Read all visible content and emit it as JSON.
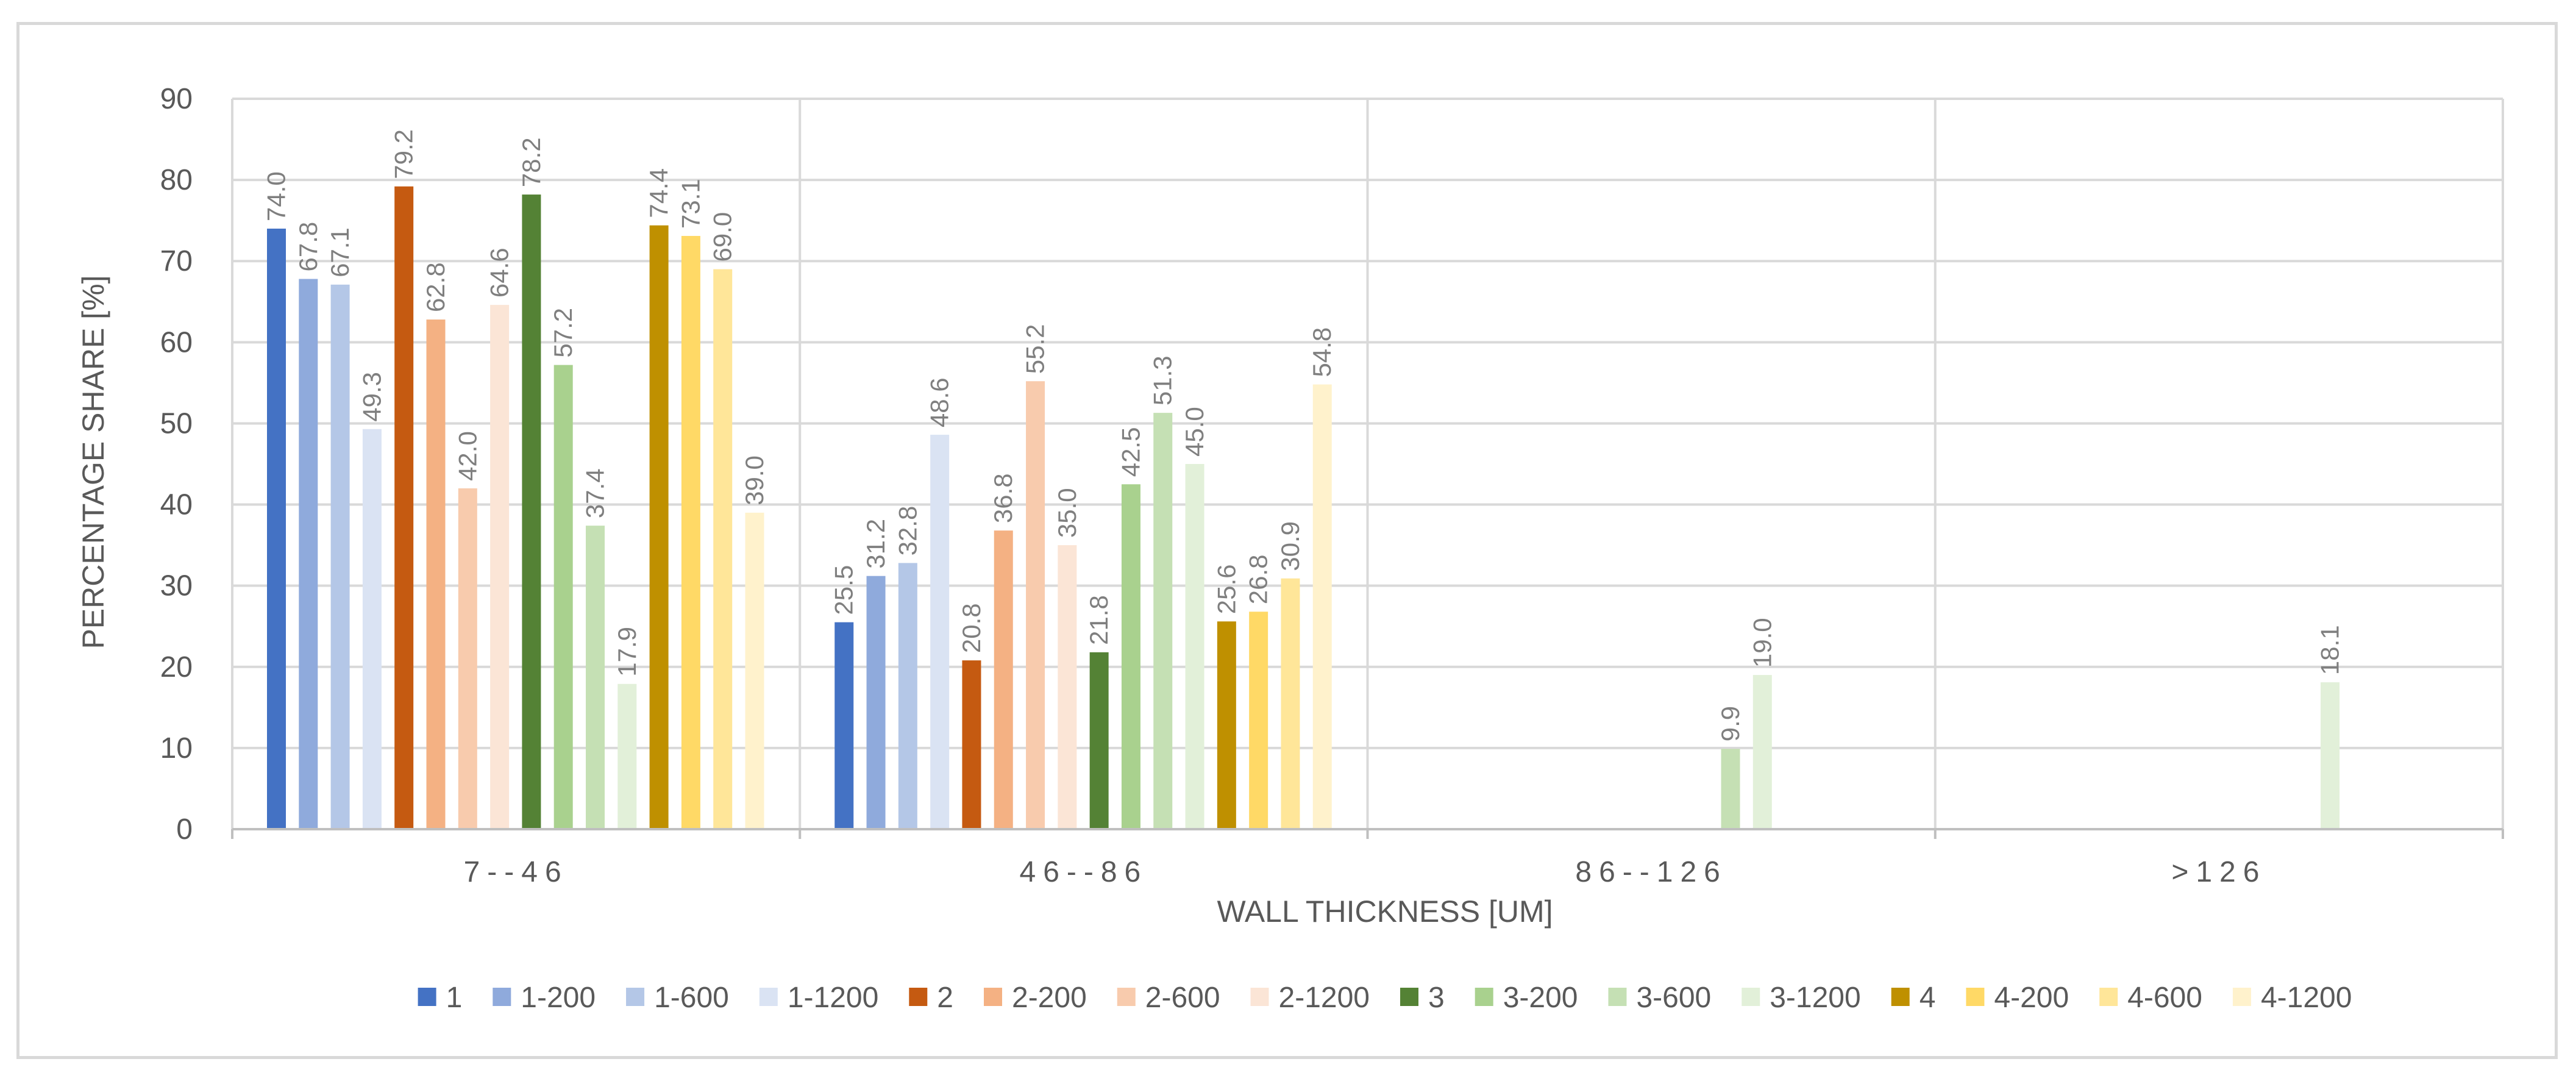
{
  "chart_data": {
    "type": "bar",
    "title": "",
    "xlabel": "WALL THICKNESS [UM]",
    "ylabel": "PERCENTAGE SHARE [%]",
    "ylim": [
      0,
      90
    ],
    "yticks": [
      "0",
      "10",
      "20",
      "30",
      "40",
      "50",
      "60",
      "70",
      "80",
      "90"
    ],
    "categories": [
      "7--46",
      "46--86",
      "86--126",
      ">126"
    ],
    "grid": true,
    "legend_position": "bottom",
    "series": [
      {
        "name": "1",
        "color": "#4472c4",
        "values": [
          74.0,
          25.5,
          null,
          null
        ]
      },
      {
        "name": "1-200",
        "color": "#8faadc",
        "values": [
          67.8,
          31.2,
          null,
          null
        ]
      },
      {
        "name": "1-600",
        "color": "#b4c7e7",
        "values": [
          67.1,
          32.8,
          null,
          null
        ]
      },
      {
        "name": "1-1200",
        "color": "#dae3f3",
        "values": [
          49.3,
          48.6,
          null,
          null
        ]
      },
      {
        "name": "2",
        "color": "#c55a11",
        "values": [
          79.2,
          20.8,
          null,
          null
        ]
      },
      {
        "name": "2-200",
        "color": "#f4b183",
        "values": [
          62.8,
          36.8,
          null,
          null
        ]
      },
      {
        "name": "2-600",
        "color": "#f8cbad",
        "values": [
          42.0,
          55.2,
          null,
          null
        ]
      },
      {
        "name": "2-1200",
        "color": "#fbe5d6",
        "values": [
          64.6,
          35.0,
          null,
          null
        ]
      },
      {
        "name": "3",
        "color": "#548235",
        "values": [
          78.2,
          21.8,
          null,
          null
        ]
      },
      {
        "name": "3-200",
        "color": "#a9d18e",
        "values": [
          57.2,
          42.5,
          null,
          null
        ]
      },
      {
        "name": "3-600",
        "color": "#c5e0b4",
        "values": [
          37.4,
          51.3,
          9.9,
          null
        ]
      },
      {
        "name": "3-1200",
        "color": "#e2f0d9",
        "values": [
          17.9,
          45.0,
          19.0,
          18.1
        ]
      },
      {
        "name": "4",
        "color": "#bf9000",
        "values": [
          74.4,
          25.6,
          null,
          null
        ]
      },
      {
        "name": "4-200",
        "color": "#ffd966",
        "values": [
          73.1,
          26.8,
          null,
          null
        ]
      },
      {
        "name": "4-600",
        "color": "#ffe699",
        "values": [
          69.0,
          30.9,
          null,
          null
        ]
      },
      {
        "name": "4-1200",
        "color": "#fff2cc",
        "values": [
          39.0,
          54.8,
          null,
          null
        ]
      }
    ]
  }
}
